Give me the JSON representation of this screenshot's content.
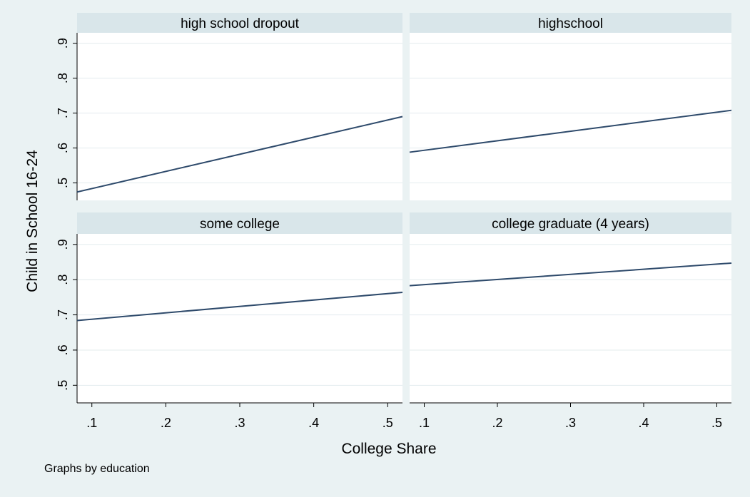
{
  "chart_data": {
    "type": "line",
    "layout": "2x2 facet grid",
    "xlabel": "College Share",
    "ylabel": "Child in School 16-24",
    "note": "Graphs by education",
    "xlim": [
      0.08,
      0.52
    ],
    "ylim": [
      0.45,
      0.93
    ],
    "xticks": [
      ".1",
      ".2",
      ".3",
      ".4",
      ".5"
    ],
    "xtick_values": [
      0.1,
      0.2,
      0.3,
      0.4,
      0.5
    ],
    "yticks": [
      ".5",
      ".6",
      ".7",
      ".8",
      ".9"
    ],
    "ytick_values": [
      0.5,
      0.6,
      0.7,
      0.8,
      0.9
    ],
    "grid": true,
    "line_color": "#2e4a6b",
    "panel_header_color": "#d9e6ea",
    "panels": [
      {
        "title": "high school dropout",
        "x": [
          0.08,
          0.52
        ],
        "y": [
          0.474,
          0.69
        ]
      },
      {
        "title": "highschool",
        "x": [
          0.08,
          0.52
        ],
        "y": [
          0.588,
          0.708
        ]
      },
      {
        "title": "some college",
        "x": [
          0.08,
          0.52
        ],
        "y": [
          0.684,
          0.764
        ]
      },
      {
        "title": "college graduate (4 years)",
        "x": [
          0.08,
          0.52
        ],
        "y": [
          0.783,
          0.847
        ]
      }
    ]
  }
}
